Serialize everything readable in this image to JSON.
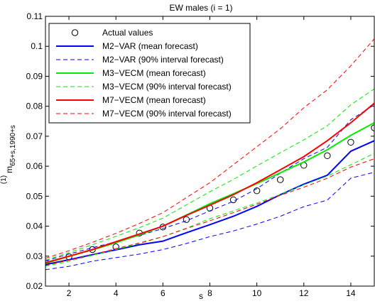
{
  "chart_data": {
    "type": "line",
    "title": "EW males (i = 1)",
    "xlabel": "s",
    "ylabel": {
      "main": "m",
      "superscript": "(1)",
      "subscript": "65+s,1990+s"
    },
    "xlim": [
      1,
      15
    ],
    "ylim": [
      0.02,
      0.11
    ],
    "xticks": [
      2,
      4,
      6,
      8,
      10,
      12,
      14
    ],
    "yticks": [
      0.02,
      0.03,
      0.04,
      0.05,
      0.06,
      0.07,
      0.08,
      0.09,
      0.1,
      0.11
    ],
    "ytick_labels": [
      "0.02",
      "0.03",
      "0.04",
      "0.05",
      "0.06",
      "0.07",
      "0.08",
      "0.09",
      "0.1",
      "0.11"
    ],
    "grid": false,
    "legend_position": "top-left",
    "x": [
      1,
      2,
      3,
      4,
      5,
      6,
      7,
      8,
      9,
      10,
      11,
      12,
      13,
      14,
      15
    ],
    "series": [
      {
        "name": "Actual values",
        "style": "circle-marker",
        "color": "#000000",
        "values": [
          0.0278,
          0.0298,
          0.0322,
          0.0331,
          0.0377,
          0.0397,
          0.0422,
          0.046,
          0.0488,
          0.0518,
          0.0555,
          0.0603,
          0.0635,
          0.068,
          0.0728
        ]
      },
      {
        "name": "M2−VAR (mean forecast)",
        "style": "solid",
        "color": "#0000ff",
        "values": [
          0.0272,
          0.0288,
          0.0305,
          0.0321,
          0.0338,
          0.035,
          0.0378,
          0.0405,
          0.0433,
          0.0466,
          0.0505,
          0.054,
          0.057,
          0.065,
          0.0685
        ]
      },
      {
        "name": "M2−VAR (90% interval forecast)",
        "style": "dashed",
        "color": "#0000ff",
        "values": [
          0.0255,
          0.0266,
          0.0283,
          0.0295,
          0.0307,
          0.0322,
          0.0342,
          0.0365,
          0.0384,
          0.0407,
          0.0433,
          0.0465,
          0.0487,
          0.056,
          0.058
        ]
      },
      {
        "name": "M2−VAR upper (90% interval forecast)",
        "style": "dashed",
        "color": "#0000ff",
        "values": [
          0.0284,
          0.0307,
          0.0328,
          0.0348,
          0.0369,
          0.0392,
          0.0418,
          0.0451,
          0.0483,
          0.0525,
          0.0577,
          0.0625,
          0.0663,
          0.0755,
          0.0805
        ]
      },
      {
        "name": "M3−VECM (mean forecast)",
        "style": "solid",
        "color": "#00ee00",
        "values": [
          0.0276,
          0.0299,
          0.0321,
          0.0345,
          0.0371,
          0.04,
          0.0437,
          0.0475,
          0.0508,
          0.0542,
          0.0578,
          0.0614,
          0.0655,
          0.0703,
          0.0745
        ]
      },
      {
        "name": "M3−VECM (90% interval forecast)",
        "style": "dashed",
        "color": "#00ee00",
        "values": [
          0.0267,
          0.0283,
          0.0303,
          0.0322,
          0.0342,
          0.0365,
          0.0393,
          0.0425,
          0.0451,
          0.0477,
          0.0506,
          0.0538,
          0.0567,
          0.0605,
          0.0643
        ]
      },
      {
        "name": "M3−VECM upper (90% interval forecast)",
        "style": "dashed",
        "color": "#00ee00",
        "values": [
          0.0287,
          0.0312,
          0.0338,
          0.0366,
          0.0395,
          0.0427,
          0.0471,
          0.0515,
          0.0556,
          0.0601,
          0.0645,
          0.0688,
          0.0735,
          0.0805,
          0.0858
        ]
      },
      {
        "name": "M7−VECM (mean forecast)",
        "style": "solid",
        "color": "#ff0000",
        "values": [
          0.0278,
          0.03,
          0.0322,
          0.0348,
          0.0374,
          0.04,
          0.0436,
          0.047,
          0.0505,
          0.0545,
          0.0588,
          0.0632,
          0.0685,
          0.0745,
          0.081
        ]
      },
      {
        "name": "M7−VECM (90% interval forecast)",
        "style": "dashed",
        "color": "#ff0000",
        "values": [
          0.0269,
          0.0287,
          0.0305,
          0.0325,
          0.0344,
          0.0365,
          0.0392,
          0.0418,
          0.0445,
          0.0473,
          0.0503,
          0.053,
          0.056,
          0.0597,
          0.0625
        ]
      },
      {
        "name": "M7−VECM upper (90% interval forecast)",
        "style": "dashed",
        "color": "#ff0000",
        "values": [
          0.0293,
          0.0318,
          0.0346,
          0.0376,
          0.0409,
          0.0445,
          0.0495,
          0.0545,
          0.0605,
          0.0665,
          0.0725,
          0.0795,
          0.0855,
          0.0935,
          0.1025
        ]
      }
    ],
    "legend": [
      {
        "label": "Actual values",
        "style": "circle-marker",
        "color": "#000000"
      },
      {
        "label": "M2−VAR (mean forecast)",
        "style": "solid",
        "color": "#0000ff"
      },
      {
        "label": "M2−VAR (90% interval forecast)",
        "style": "dashed",
        "color": "#0000ff"
      },
      {
        "label": "M3−VECM (mean forecast)",
        "style": "solid",
        "color": "#00ee00"
      },
      {
        "label": "M3−VECM (90% interval forecast)",
        "style": "dashed",
        "color": "#00ee00"
      },
      {
        "label": "M7−VECM (mean forecast)",
        "style": "solid",
        "color": "#ff0000"
      },
      {
        "label": "M7−VECM (90% interval forecast)",
        "style": "dashed",
        "color": "#ff0000"
      }
    ]
  }
}
